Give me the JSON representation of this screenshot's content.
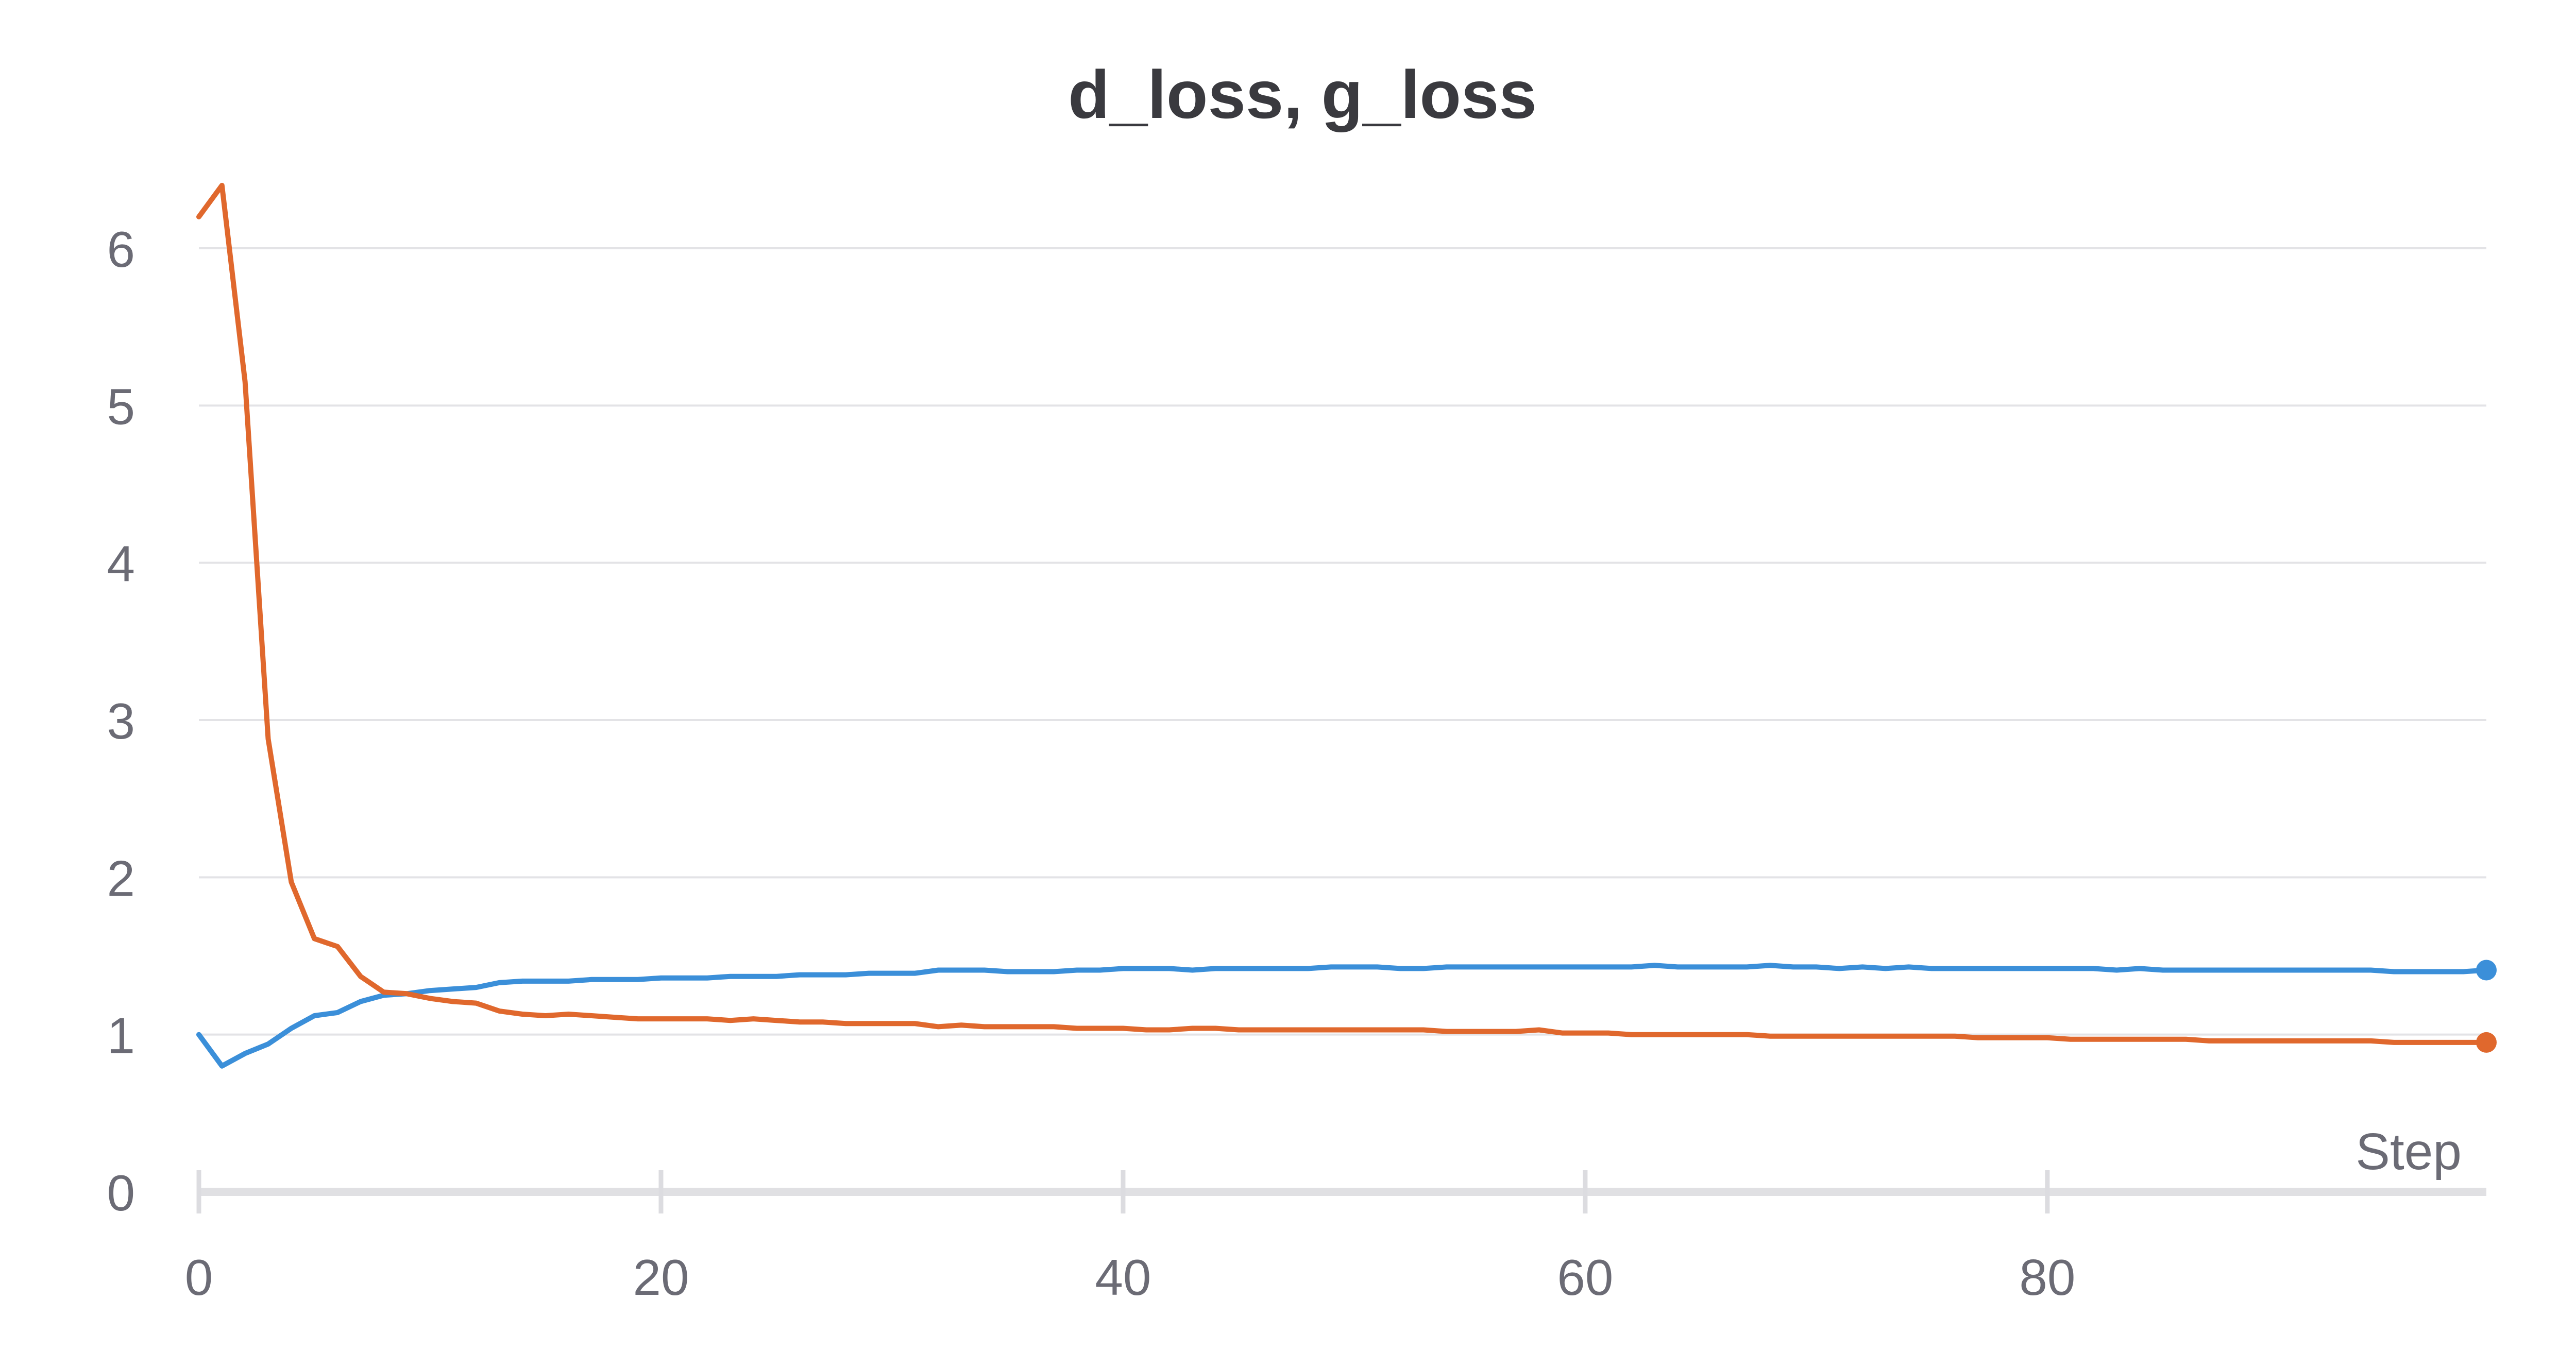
{
  "chart_data": {
    "type": "line",
    "title": "d_loss, g_loss",
    "xlabel": "Step",
    "ylabel": "",
    "xlim": [
      0,
      99
    ],
    "ylim": [
      0,
      6.6
    ],
    "xticks": [
      0,
      20,
      40,
      60,
      80
    ],
    "yticks": [
      0,
      1,
      2,
      3,
      4,
      5,
      6
    ],
    "grid": true,
    "legend": "none",
    "x": [
      0,
      1,
      2,
      3,
      4,
      5,
      6,
      7,
      8,
      9,
      10,
      11,
      12,
      13,
      14,
      15,
      16,
      17,
      18,
      19,
      20,
      21,
      22,
      23,
      24,
      25,
      26,
      27,
      28,
      29,
      30,
      31,
      32,
      33,
      34,
      35,
      36,
      37,
      38,
      39,
      40,
      41,
      42,
      43,
      44,
      45,
      46,
      47,
      48,
      49,
      50,
      51,
      52,
      53,
      54,
      55,
      56,
      57,
      58,
      59,
      60,
      61,
      62,
      63,
      64,
      65,
      66,
      67,
      68,
      69,
      70,
      71,
      72,
      73,
      74,
      75,
      76,
      77,
      78,
      79,
      80,
      81,
      82,
      83,
      84,
      85,
      86,
      87,
      88,
      89,
      90,
      91,
      92,
      93,
      94,
      95,
      96,
      97,
      98,
      99
    ],
    "series": [
      {
        "color": "#3b8fd9",
        "values": [
          1.0,
          0.8,
          0.88,
          0.94,
          1.04,
          1.12,
          1.14,
          1.21,
          1.25,
          1.26,
          1.28,
          1.29,
          1.3,
          1.33,
          1.34,
          1.34,
          1.34,
          1.35,
          1.35,
          1.35,
          1.36,
          1.36,
          1.36,
          1.37,
          1.37,
          1.37,
          1.38,
          1.38,
          1.38,
          1.39,
          1.39,
          1.39,
          1.41,
          1.41,
          1.41,
          1.4,
          1.4,
          1.4,
          1.41,
          1.41,
          1.42,
          1.42,
          1.42,
          1.41,
          1.42,
          1.42,
          1.42,
          1.42,
          1.42,
          1.43,
          1.43,
          1.43,
          1.42,
          1.42,
          1.43,
          1.43,
          1.43,
          1.43,
          1.43,
          1.43,
          1.43,
          1.43,
          1.43,
          1.44,
          1.43,
          1.43,
          1.43,
          1.43,
          1.44,
          1.43,
          1.43,
          1.42,
          1.43,
          1.42,
          1.43,
          1.42,
          1.42,
          1.42,
          1.42,
          1.42,
          1.42,
          1.42,
          1.42,
          1.41,
          1.42,
          1.41,
          1.41,
          1.41,
          1.41,
          1.41,
          1.41,
          1.41,
          1.41,
          1.41,
          1.41,
          1.4,
          1.4,
          1.4,
          1.4,
          1.41
        ]
      },
      {
        "color": "#e0682d",
        "values": [
          6.2,
          6.4,
          5.15,
          2.88,
          1.97,
          1.61,
          1.56,
          1.37,
          1.27,
          1.26,
          1.23,
          1.21,
          1.2,
          1.15,
          1.13,
          1.12,
          1.13,
          1.12,
          1.11,
          1.1,
          1.1,
          1.1,
          1.1,
          1.09,
          1.1,
          1.09,
          1.08,
          1.08,
          1.07,
          1.07,
          1.07,
          1.07,
          1.05,
          1.06,
          1.05,
          1.05,
          1.05,
          1.05,
          1.04,
          1.04,
          1.04,
          1.03,
          1.03,
          1.04,
          1.04,
          1.03,
          1.03,
          1.03,
          1.03,
          1.03,
          1.03,
          1.03,
          1.03,
          1.03,
          1.02,
          1.02,
          1.02,
          1.02,
          1.03,
          1.01,
          1.01,
          1.01,
          1.0,
          1.0,
          1.0,
          1.0,
          1.0,
          1.0,
          0.99,
          0.99,
          0.99,
          0.99,
          0.99,
          0.99,
          0.99,
          0.99,
          0.99,
          0.98,
          0.98,
          0.98,
          0.98,
          0.97,
          0.97,
          0.97,
          0.97,
          0.97,
          0.97,
          0.96,
          0.96,
          0.96,
          0.96,
          0.96,
          0.96,
          0.96,
          0.96,
          0.95,
          0.95,
          0.95,
          0.95,
          0.95
        ]
      }
    ]
  }
}
